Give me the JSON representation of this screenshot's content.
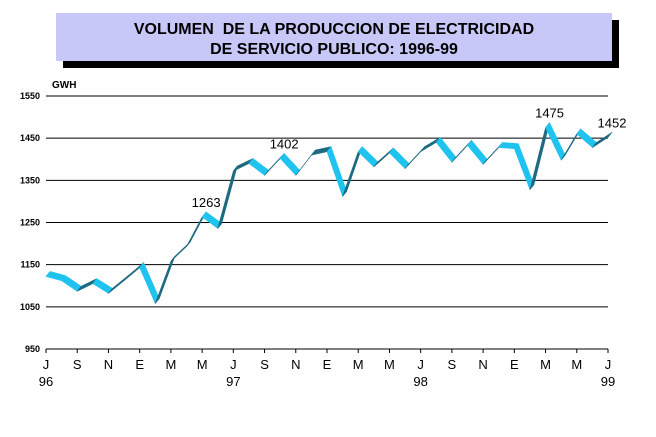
{
  "chart_data": {
    "type": "line",
    "title_line1": "VOLUMEN  DE LA PRODUCCION DE ELECTRICIDAD",
    "title_line2": "DE SERVICIO PUBLICO: 1996-99",
    "ylabel": "GWH",
    "ylim": [
      950,
      1550
    ],
    "yticks": [
      950,
      1050,
      1150,
      1250,
      1350,
      1450,
      1550
    ],
    "grid": true,
    "x_ticks": [
      "J",
      "S",
      "N",
      "E",
      "M",
      "M",
      "J",
      "S",
      "N",
      "E",
      "M",
      "M",
      "J",
      "S",
      "N",
      "E",
      "M",
      "M",
      "J"
    ],
    "year_labels": [
      {
        "tick_index": 0,
        "label": "96"
      },
      {
        "tick_index": 6,
        "label": "97"
      },
      {
        "tick_index": 12,
        "label": "98"
      },
      {
        "tick_index": 18,
        "label": "99"
      }
    ],
    "series": [
      {
        "values": [
          1122,
          1112,
          1087,
          1105,
          1082,
          1112,
          1143,
          1058,
          1158,
          1193,
          1263,
          1236,
          1372,
          1390,
          1362,
          1402,
          1362,
          1410,
          1418,
          1312,
          1418,
          1382,
          1415,
          1378,
          1418,
          1440,
          1393,
          1433,
          1388,
          1428,
          1425,
          1328,
          1475,
          1398,
          1460,
          1428,
          1452
        ]
      }
    ],
    "data_labels": [
      {
        "index": 10,
        "text": "1263"
      },
      {
        "index": 15,
        "text": "1402"
      },
      {
        "index": 32,
        "text": "1475"
      },
      {
        "index": 36,
        "text": "1452"
      }
    ]
  },
  "colors": {
    "title_bg": "#c8c8f8",
    "title_shadow": "#000000",
    "line_light": "#1fc3f0",
    "line_dark": "#1e6a80",
    "grid": "#000000",
    "text": "#000000"
  }
}
